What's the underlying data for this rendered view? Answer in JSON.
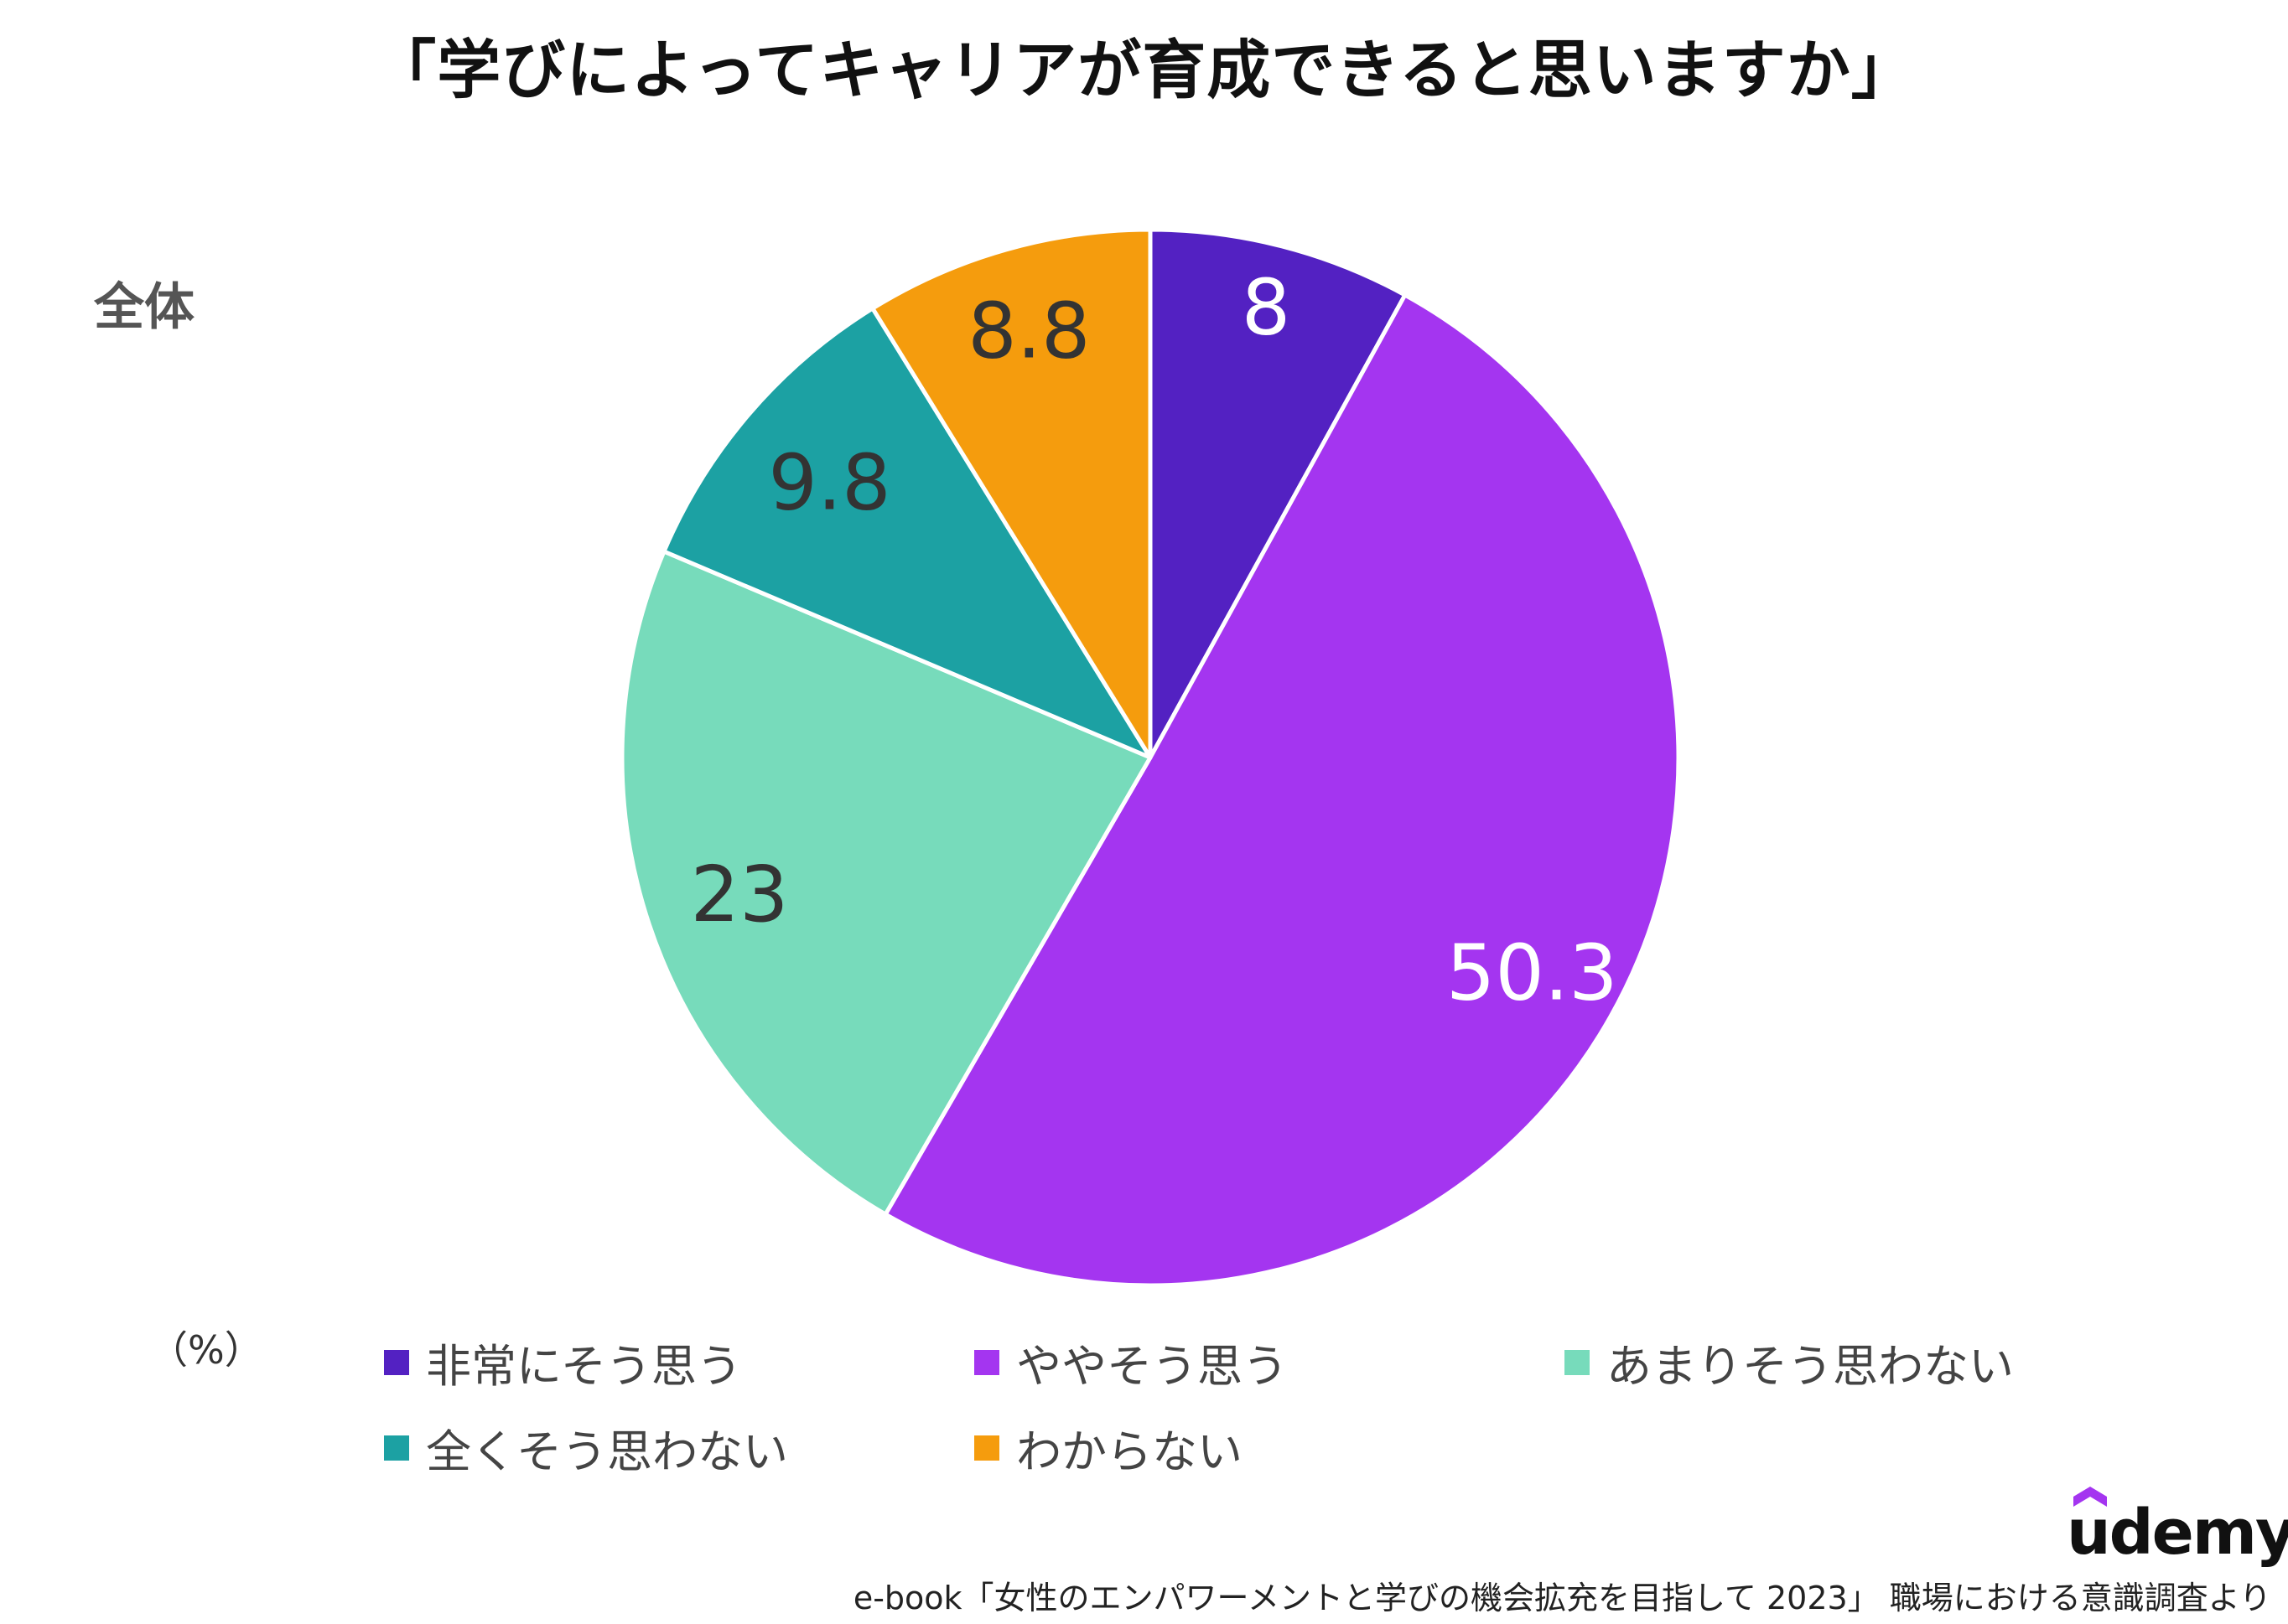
{
  "title": "「学びによってキャリアが育成できると思いますか」",
  "subtitle": "全体",
  "unit_label": "（%）",
  "chart_data": {
    "type": "pie",
    "start_angle_deg": 0,
    "direction": "clockwise",
    "slices": [
      {
        "name": "非常にそう思う",
        "value": 8,
        "label": "8",
        "color": "#5321C2",
        "label_color": "#FFFFFF"
      },
      {
        "name": "ややそう思う",
        "value": 50.3,
        "label": "50.3",
        "color": "#A435F0",
        "label_color": "#FFFFFF"
      },
      {
        "name": "あまりそう思わない",
        "value": 23,
        "label": "23",
        "color": "#77DBBB",
        "label_color": "#333333"
      },
      {
        "name": "全くそう思わない",
        "value": 9.8,
        "label": "9.8",
        "color": "#1CA1A3",
        "label_color": "#333333"
      },
      {
        "name": "わからない",
        "value": 8.8,
        "label": "8.8",
        "color": "#F59C0D",
        "label_color": "#333333"
      }
    ],
    "legend_position": "bottom"
  },
  "logo": {
    "text": "udemy",
    "cap_color": "#A435F0"
  },
  "source": "e-book「女性のエンパワーメントと学びの機会拡充を目指して 2023」 職場における意識調査より"
}
